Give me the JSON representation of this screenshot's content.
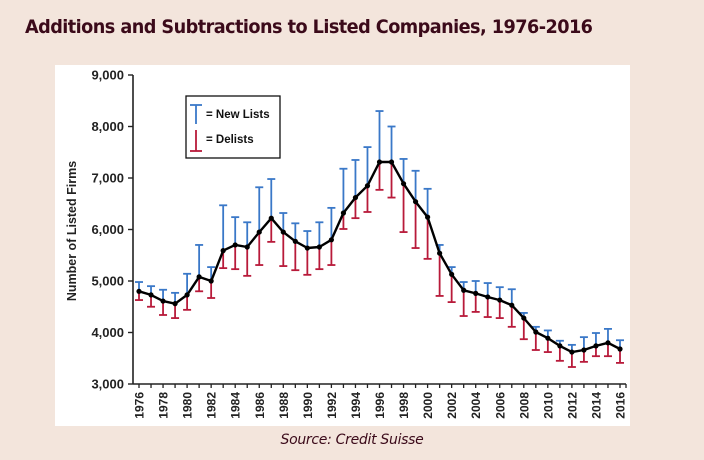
{
  "page": {
    "title": "Additions and Subtractions to Listed Companies, 1976-2016",
    "source": "Source: Credit Suisse"
  },
  "colors": {
    "background": "#f3e5dc",
    "title": "#3b0a1a",
    "new_lists": "#3a78c8",
    "delists": "#b81a3a",
    "line": "#000000"
  },
  "chart_data": {
    "type": "line",
    "title": "Additions and Subtractions to Listed Companies, 1976-2016",
    "xlabel": "",
    "ylabel": "Number of Listed Firms",
    "ylim": [
      3000,
      9000
    ],
    "yticks": [
      3000,
      4000,
      5000,
      6000,
      7000,
      8000,
      9000
    ],
    "ytick_labels": [
      "3,000",
      "4,000",
      "5,000",
      "6,000",
      "7,000",
      "8,000",
      "9,000"
    ],
    "xtick_labels": [
      "1976",
      "1978",
      "1980",
      "1982",
      "1984",
      "1986",
      "1988",
      "1990",
      "1992",
      "1994",
      "1996",
      "1998",
      "2000",
      "2002",
      "2004",
      "2006",
      "2008",
      "2010",
      "2012",
      "2014",
      "2016"
    ],
    "grid": false,
    "legend": {
      "placement": "top-left",
      "entries": [
        {
          "symbol": "T",
          "label": "= New Lists",
          "series": "new_lists"
        },
        {
          "symbol": "⊥",
          "label": "= Delists",
          "series": "delists"
        }
      ]
    },
    "x": [
      1976,
      1977,
      1978,
      1979,
      1980,
      1981,
      1982,
      1983,
      1984,
      1985,
      1986,
      1987,
      1988,
      1989,
      1990,
      1991,
      1992,
      1993,
      1994,
      1995,
      1996,
      1997,
      1998,
      1999,
      2000,
      2001,
      2002,
      2003,
      2004,
      2005,
      2006,
      2007,
      2008,
      2009,
      2010,
      2011,
      2012,
      2013,
      2014,
      2015,
      2016
    ],
    "series": [
      {
        "name": "Listed Firms",
        "values": [
          4800,
          4730,
          4610,
          4560,
          4730,
          5080,
          5000,
          5590,
          5700,
          5660,
          5950,
          6220,
          5950,
          5770,
          5640,
          5660,
          5800,
          6320,
          6620,
          6850,
          7310,
          7310,
          6890,
          6540,
          6240,
          5540,
          5130,
          4820,
          4760,
          4690,
          4630,
          4530,
          4280,
          4010,
          3890,
          3740,
          3620,
          3660,
          3740,
          3800,
          3680
        ]
      },
      {
        "name": "New Lists (top of error bar)",
        "values": [
          4980,
          4900,
          4830,
          4770,
          5140,
          5700,
          5270,
          6470,
          6240,
          6140,
          6820,
          6980,
          6320,
          6120,
          5970,
          6140,
          6420,
          7180,
          7350,
          7600,
          8300,
          8000,
          7370,
          7140,
          6790,
          5700,
          5270,
          4980,
          5000,
          4960,
          4880,
          4840,
          4380,
          4110,
          4040,
          3840,
          3760,
          3910,
          3990,
          4070,
          3850
        ]
      },
      {
        "name": "Delists (bottom of error bar)",
        "values": [
          4630,
          4500,
          4340,
          4280,
          4440,
          4800,
          4670,
          5250,
          5230,
          5100,
          5310,
          5760,
          5290,
          5210,
          5120,
          5230,
          5310,
          6010,
          6220,
          6340,
          6770,
          6620,
          5950,
          5640,
          5430,
          4710,
          4590,
          4320,
          4400,
          4300,
          4280,
          4110,
          3870,
          3660,
          3620,
          3450,
          3330,
          3430,
          3540,
          3540,
          3410
        ]
      }
    ]
  }
}
